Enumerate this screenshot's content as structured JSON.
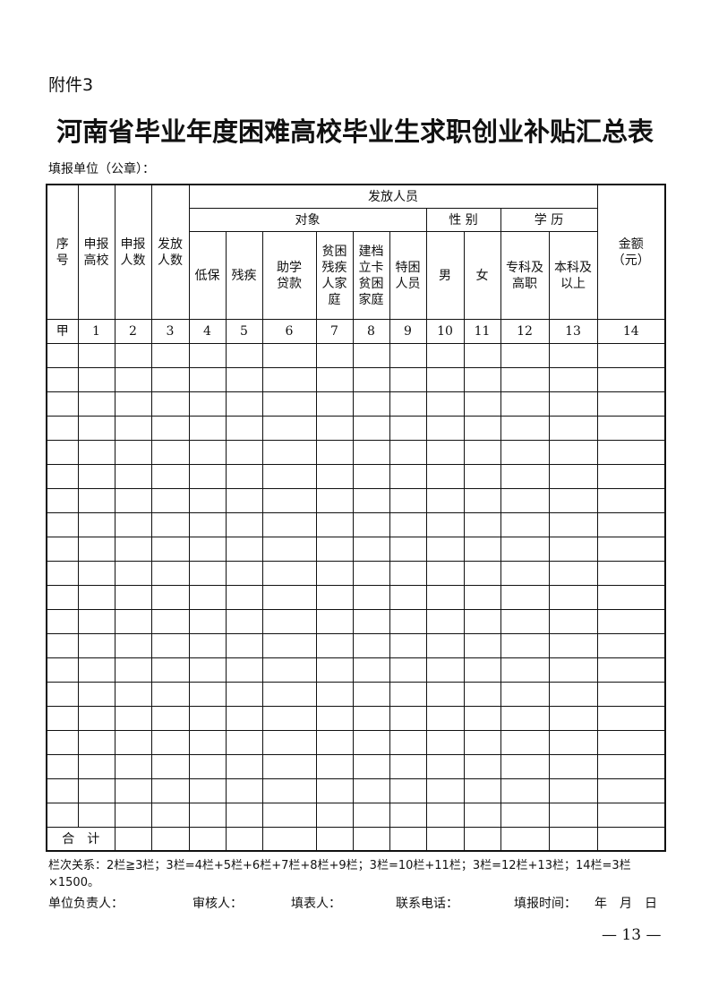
{
  "attachment": "附件3",
  "title": "河南省毕业年度困难高校毕业生求职创业补贴汇总表",
  "fill_unit": "填报单位（公章）：",
  "table": {
    "col_serial": "序号",
    "col_school": "申报高校",
    "col_applicants": "申报人数",
    "col_paid_count": "发放人数",
    "group_paid": "发放人员",
    "group_target": "对象",
    "group_gender": "性 别",
    "group_education": "学 历",
    "col_amount": "金额（元）",
    "targets": [
      "低保",
      "残疾",
      "助学贷款",
      "贫困残疾人家庭",
      "建档立卡贫困家庭",
      "特困人员"
    ],
    "genders": [
      "男",
      "女"
    ],
    "education": [
      "专科及高职",
      "本科及以上"
    ],
    "number_row": [
      "甲",
      "1",
      "2",
      "3",
      "4",
      "5",
      "6",
      "7",
      "8",
      "9",
      "10",
      "11",
      "12",
      "13",
      "14"
    ],
    "total_label": "合　计"
  },
  "notes": "栏次关系：2栏≧3栏；3栏=4栏+5栏+6栏+7栏+8栏+9栏；3栏=10栏+11栏；3栏=12栏+13栏；14栏=3栏×1500。",
  "signatures": {
    "unit_head": "单位负责人：",
    "reviewer": "审核人：",
    "filler": "填表人：",
    "phone": "联系电话：",
    "fill_date": "填报时间：",
    "date_units": "年　月　日"
  },
  "page_number": "— 13 —"
}
